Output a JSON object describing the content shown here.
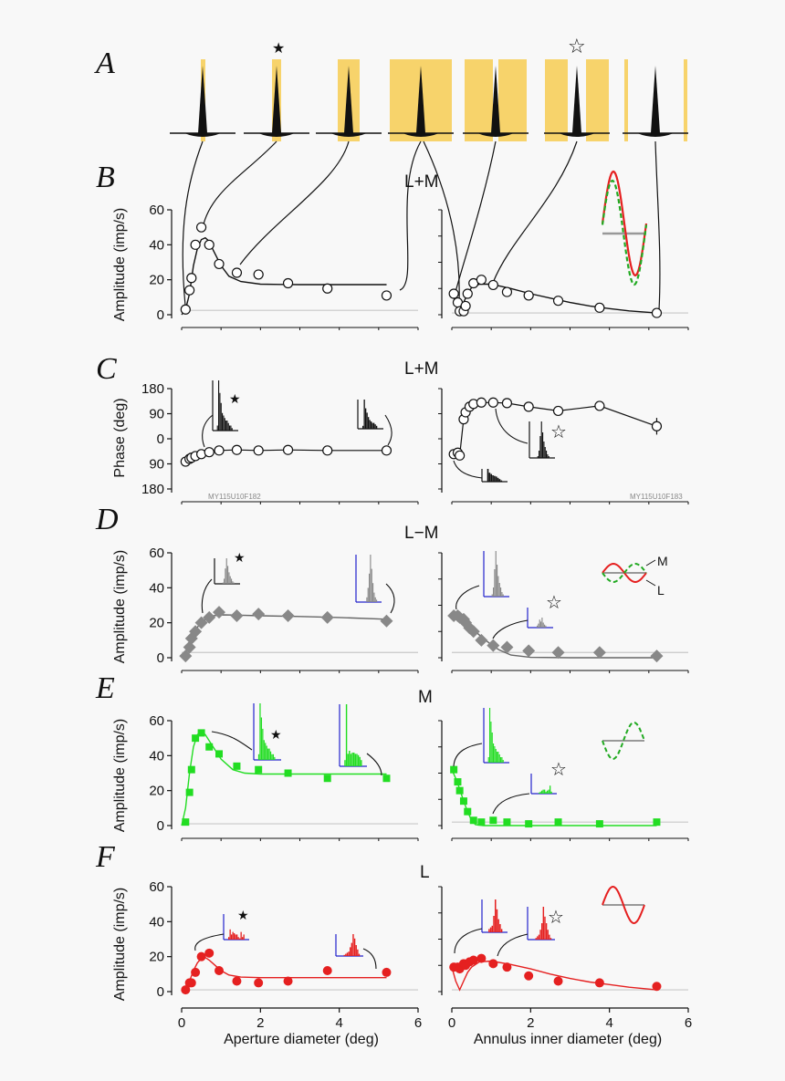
{
  "panel_labels": {
    "A": "A",
    "B": "B",
    "C": "C",
    "D": "D",
    "E": "E",
    "F": "F"
  },
  "channel_labels": {
    "B": "L+M",
    "C": "L+M",
    "D": "L−M",
    "E": "M",
    "F": "L"
  },
  "cell_codes": {
    "left": "MY115U10F182",
    "right": "MY115U10F183"
  },
  "legend_labels": {
    "M": "M",
    "L": "L"
  },
  "colors": {
    "LM": "#000000",
    "LminusM": "#888888",
    "M": "#22dd22",
    "L": "#e52020",
    "stimulus": "#f7d36b",
    "axis": "#111111",
    "baseline": "#c8c8c8"
  },
  "chart_data": [
    {
      "id": "B-left",
      "type": "scatter",
      "channel": "L+M",
      "marker": "circle",
      "color": "#000000",
      "ylabel": "Amplitude (imp/s)",
      "xlabel": "",
      "xlim": [
        0,
        6
      ],
      "ylim": [
        0,
        60
      ],
      "yticks": [
        0,
        20,
        40,
        60
      ],
      "xticks": [
        0,
        2,
        4,
        6
      ],
      "x": [
        0.1,
        0.2,
        0.25,
        0.35,
        0.5,
        0.7,
        0.95,
        1.4,
        1.95,
        2.7,
        3.7,
        5.2
      ],
      "y": [
        3,
        14,
        21,
        40,
        50,
        40,
        29,
        24,
        23,
        18,
        15,
        11
      ],
      "fit_x": [
        0,
        0.1,
        0.2,
        0.3,
        0.4,
        0.5,
        0.6,
        0.7,
        0.8,
        1.0,
        1.2,
        1.5,
        2.0,
        2.5,
        3.0,
        4.0,
        5.2
      ],
      "fit_y": [
        0,
        3,
        12,
        28,
        38,
        43,
        44,
        42,
        37,
        28,
        22,
        19,
        17.5,
        17.3,
        17.2,
        17.2,
        17.2
      ],
      "baseline": 2.5
    },
    {
      "id": "B-right",
      "type": "scatter",
      "channel": "L+M",
      "marker": "circle",
      "color": "#000000",
      "ylabel": "",
      "xlabel": "",
      "xlim": [
        0,
        6
      ],
      "ylim": [
        0,
        60
      ],
      "x": [
        0.05,
        0.15,
        0.2,
        0.3,
        0.35,
        0.4,
        0.55,
        0.75,
        1.05,
        1.4,
        1.95,
        2.7,
        3.75,
        5.2
      ],
      "y": [
        12,
        7,
        2,
        2,
        5,
        12,
        18,
        20,
        17,
        13,
        11,
        8,
        4,
        1
      ],
      "fit_x": [
        0,
        0.1,
        0.2,
        0.3,
        0.4,
        0.5,
        0.7,
        1.0,
        1.5,
        2.0,
        2.5,
        3.0,
        3.5,
        4.0,
        4.5,
        5.2
      ],
      "fit_y": [
        12,
        7,
        4,
        7,
        12,
        15.5,
        17.5,
        17.5,
        15,
        12,
        9.5,
        7,
        5,
        3.5,
        2.2,
        1
      ],
      "baseline": 1
    },
    {
      "id": "C-left",
      "type": "line",
      "channel": "L+M",
      "marker": "circle",
      "color": "#000000",
      "ylabel": "Phase (deg)",
      "xlabel": "",
      "xlim": [
        0,
        6
      ],
      "ylim": [
        -180,
        180
      ],
      "yticks": [
        180,
        90,
        0,
        -90,
        -180
      ],
      "ytick_labels": [
        "180",
        "90",
        "0",
        "90",
        "180"
      ],
      "x": [
        0.1,
        0.2,
        0.25,
        0.35,
        0.5,
        0.7,
        0.95,
        1.4,
        1.95,
        2.7,
        3.7,
        5.2
      ],
      "y": [
        -82,
        -72,
        -68,
        -62,
        -55,
        -48,
        -42,
        -40,
        -42,
        -40,
        -42,
        -42
      ]
    },
    {
      "id": "C-right",
      "type": "line",
      "channel": "L+M",
      "marker": "circle",
      "color": "#000000",
      "ylabel": "",
      "xlabel": "",
      "xlim": [
        0,
        6
      ],
      "ylim": [
        -180,
        180
      ],
      "x": [
        0.05,
        0.15,
        0.2,
        0.3,
        0.35,
        0.45,
        0.55,
        0.75,
        1.05,
        1.4,
        1.95,
        2.7,
        3.75,
        5.2
      ],
      "y": [
        -55,
        -50,
        -60,
        70,
        95,
        115,
        125,
        130,
        130,
        128,
        115,
        100,
        118,
        45
      ],
      "err": [
        0,
        0,
        0,
        0,
        0,
        0,
        0,
        0,
        0,
        0,
        0,
        0,
        0,
        30
      ]
    },
    {
      "id": "D-left",
      "type": "scatter",
      "channel": "L−M",
      "marker": "diamond",
      "color": "#888888",
      "ylabel": "Amplitude (imp/s)",
      "xlabel": "",
      "xlim": [
        0,
        6
      ],
      "ylim": [
        0,
        60
      ],
      "yticks": [
        0,
        20,
        40,
        60
      ],
      "x": [
        0.1,
        0.2,
        0.25,
        0.35,
        0.5,
        0.7,
        0.95,
        1.4,
        1.95,
        2.7,
        3.7,
        5.2
      ],
      "y": [
        1,
        6,
        11,
        15,
        20,
        23,
        26,
        24,
        25,
        24,
        23,
        21
      ],
      "fit_x": [
        0,
        0.1,
        0.2,
        0.3,
        0.45,
        0.6,
        0.8,
        1.0,
        1.5,
        2.0,
        3.0,
        4.0,
        5.2
      ],
      "fit_y": [
        0,
        3,
        8,
        14,
        19,
        22,
        24,
        24.5,
        24.3,
        24,
        23.6,
        23,
        22
      ],
      "baseline": 3
    },
    {
      "id": "D-right",
      "type": "scatter",
      "channel": "L−M",
      "marker": "diamond",
      "color": "#888888",
      "ylabel": "",
      "xlabel": "",
      "xlim": [
        0,
        6
      ],
      "ylim": [
        0,
        60
      ],
      "x": [
        0.05,
        0.15,
        0.2,
        0.3,
        0.35,
        0.45,
        0.55,
        0.75,
        1.05,
        1.4,
        1.95,
        2.7,
        3.75,
        5.2
      ],
      "y": [
        24,
        24,
        23,
        22,
        20,
        17,
        15,
        10,
        7,
        6,
        4,
        3,
        3,
        1
      ],
      "fit_x": [
        0,
        0.2,
        0.4,
        0.6,
        0.8,
        1.0,
        1.2,
        1.5,
        2.0,
        3.0,
        4.0,
        5.2
      ],
      "fit_y": [
        24,
        22,
        19,
        15,
        11,
        7.5,
        4.5,
        1.5,
        0.2,
        0,
        0,
        0
      ],
      "baseline": 3
    },
    {
      "id": "E-left",
      "type": "scatter",
      "channel": "M",
      "marker": "square",
      "color": "#22dd22",
      "ylabel": "Amplitude (imp/s)",
      "xlabel": "",
      "xlim": [
        0,
        6
      ],
      "ylim": [
        0,
        60
      ],
      "yticks": [
        0,
        20,
        40,
        60
      ],
      "x": [
        0.1,
        0.2,
        0.25,
        0.35,
        0.5,
        0.7,
        0.95,
        1.4,
        1.95,
        2.7,
        3.7,
        5.2
      ],
      "y": [
        2,
        19,
        32,
        50,
        53,
        45,
        41,
        34,
        32,
        30,
        27,
        27
      ],
      "fit_x": [
        0,
        0.1,
        0.2,
        0.3,
        0.4,
        0.5,
        0.6,
        0.8,
        1.0,
        1.3,
        1.6,
        2.0,
        3.0,
        4.0,
        5.2
      ],
      "fit_y": [
        0,
        10,
        30,
        45,
        52,
        54,
        52,
        45,
        38,
        32,
        30,
        29.5,
        29.5,
        29.5,
        29.5
      ],
      "baseline": 1
    },
    {
      "id": "E-right",
      "type": "scatter",
      "channel": "M",
      "marker": "square",
      "color": "#22dd22",
      "ylabel": "",
      "xlabel": "",
      "xlim": [
        0,
        6
      ],
      "ylim": [
        0,
        60
      ],
      "x": [
        0.05,
        0.15,
        0.2,
        0.3,
        0.4,
        0.55,
        0.75,
        1.05,
        1.4,
        1.95,
        2.7,
        3.75,
        5.2
      ],
      "y": [
        32,
        25,
        20,
        14,
        8,
        3,
        2,
        3,
        2,
        1,
        2,
        1,
        2
      ],
      "fit_x": [
        0,
        0.1,
        0.2,
        0.3,
        0.4,
        0.5,
        0.6,
        0.8,
        1.0,
        1.5,
        2.0,
        3.0,
        4.0,
        5.2
      ],
      "fit_y": [
        32,
        27,
        21,
        14,
        8,
        3,
        0.5,
        0,
        0,
        0,
        0,
        0,
        0,
        0
      ],
      "baseline": 2
    },
    {
      "id": "F-left",
      "type": "scatter",
      "channel": "L",
      "marker": "circle-filled",
      "color": "#e52020",
      "ylabel": "Amplitude (imp/s)",
      "xlabel": "Aperture diameter (deg)",
      "xlim": [
        0,
        6
      ],
      "ylim": [
        0,
        60
      ],
      "yticks": [
        0,
        20,
        40,
        60
      ],
      "xticks": [
        0,
        2,
        4,
        6
      ],
      "x": [
        0.1,
        0.2,
        0.25,
        0.35,
        0.5,
        0.7,
        0.95,
        1.4,
        1.95,
        2.7,
        3.7,
        5.2
      ],
      "y": [
        1,
        5,
        5,
        11,
        20,
        22,
        12,
        6,
        5,
        6,
        12,
        11
      ],
      "fit_x": [
        0,
        0.1,
        0.2,
        0.3,
        0.4,
        0.5,
        0.6,
        0.7,
        0.8,
        1.0,
        1.2,
        1.5,
        2.0,
        3.0,
        5.2
      ],
      "fit_y": [
        0,
        2,
        6,
        12,
        16.5,
        19,
        19.5,
        18,
        16,
        12,
        9.5,
        8.3,
        8,
        8,
        8
      ],
      "baseline": 1
    },
    {
      "id": "F-right",
      "type": "scatter",
      "channel": "L",
      "marker": "circle-filled",
      "color": "#e52020",
      "ylabel": "",
      "xlabel": "Annulus inner diameter (deg)",
      "xlim": [
        0,
        6
      ],
      "ylim": [
        0,
        60
      ],
      "xticks": [
        0,
        2,
        4,
        6
      ],
      "x": [
        0.05,
        0.15,
        0.2,
        0.3,
        0.35,
        0.45,
        0.55,
        0.75,
        1.05,
        1.4,
        1.95,
        2.7,
        3.75,
        5.2
      ],
      "y": [
        14,
        14,
        13,
        16,
        15,
        17,
        18,
        19,
        16,
        14,
        9,
        6,
        5,
        3
      ],
      "fit_x": [
        0,
        0.1,
        0.2,
        0.3,
        0.4,
        0.5,
        0.7,
        1.0,
        1.5,
        2.0,
        2.5,
        3.0,
        3.5,
        4.0,
        4.5,
        5.2
      ],
      "fit_y": [
        14,
        6,
        1,
        6,
        11,
        14,
        17,
        17.5,
        15.5,
        13,
        10,
        7.5,
        5.5,
        4,
        2.5,
        1
      ],
      "baseline": 1
    }
  ]
}
